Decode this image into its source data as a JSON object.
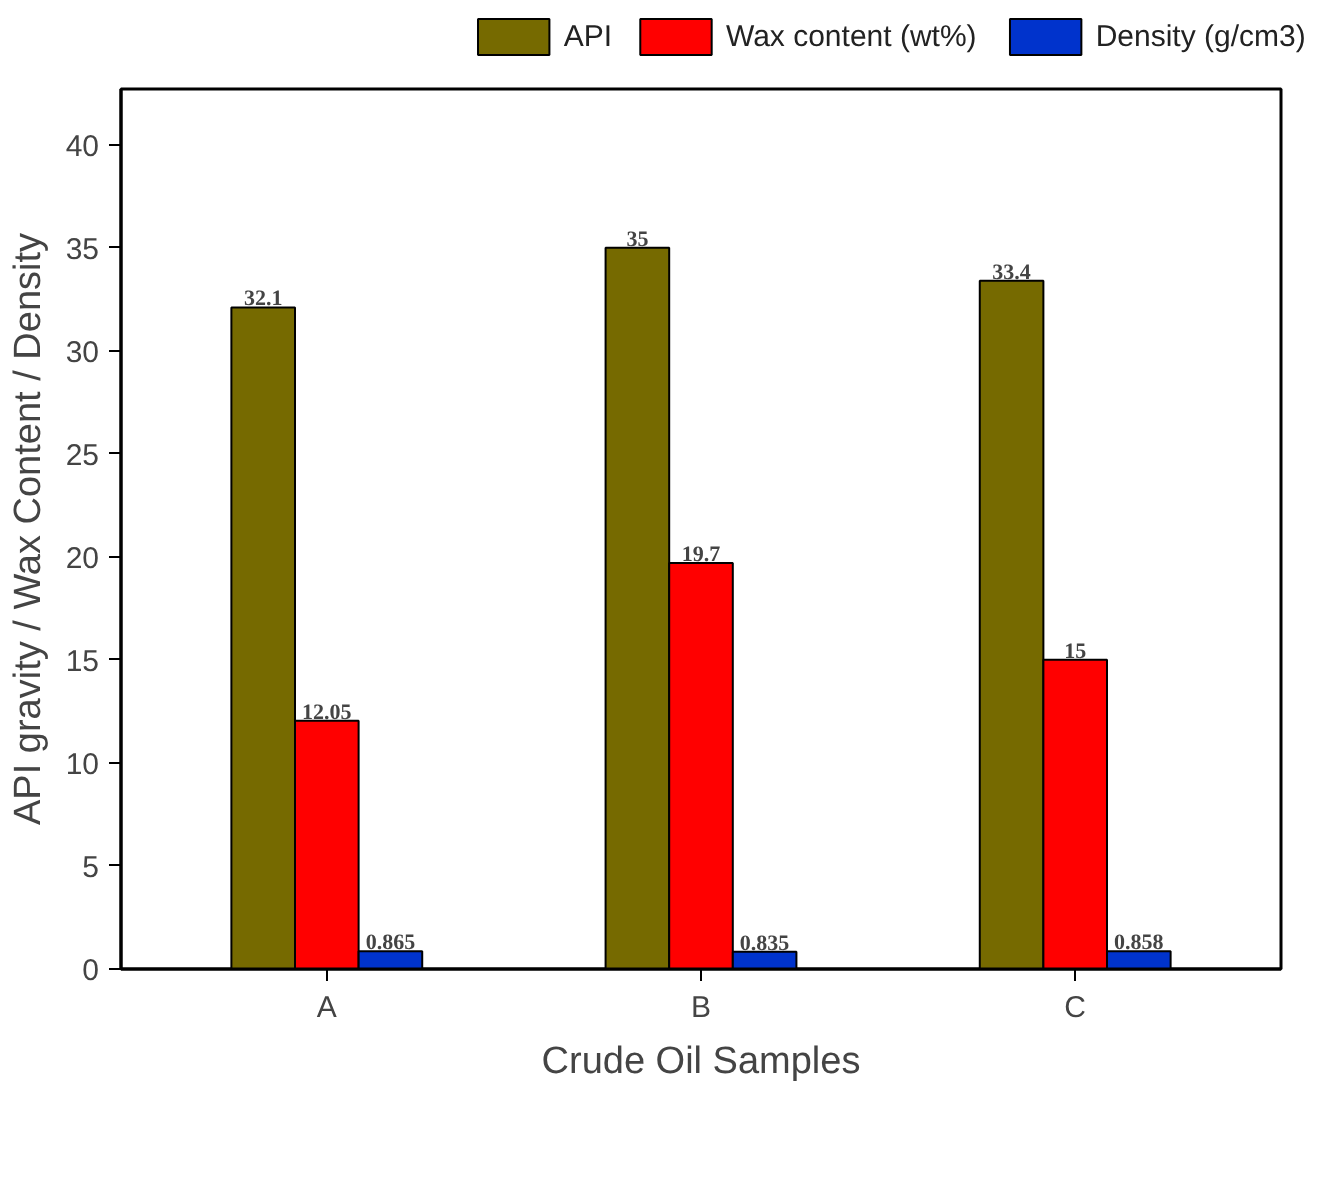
{
  "chart_data": {
    "type": "bar",
    "xlabel": "Crude Oil Samples",
    "ylabel": "API gravity / Wax Content / Density",
    "categories": [
      "A",
      "B",
      "C"
    ],
    "series": [
      {
        "name": "API",
        "color": "#766a00",
        "values": [
          32.1,
          35,
          33.4
        ]
      },
      {
        "name": "Wax content (wt%)",
        "color": "#ff0000",
        "values": [
          12.05,
          19.7,
          15
        ]
      },
      {
        "name": "Density (g/cm3)",
        "color": "#0033cc",
        "values": [
          0.865,
          0.835,
          0.858
        ]
      }
    ],
    "ylim": [
      0,
      42.7
    ],
    "yticks": [
      0,
      5,
      10,
      15,
      20,
      25,
      30,
      35,
      40
    ],
    "grid": false,
    "legend": "top",
    "data_labels": true
  }
}
